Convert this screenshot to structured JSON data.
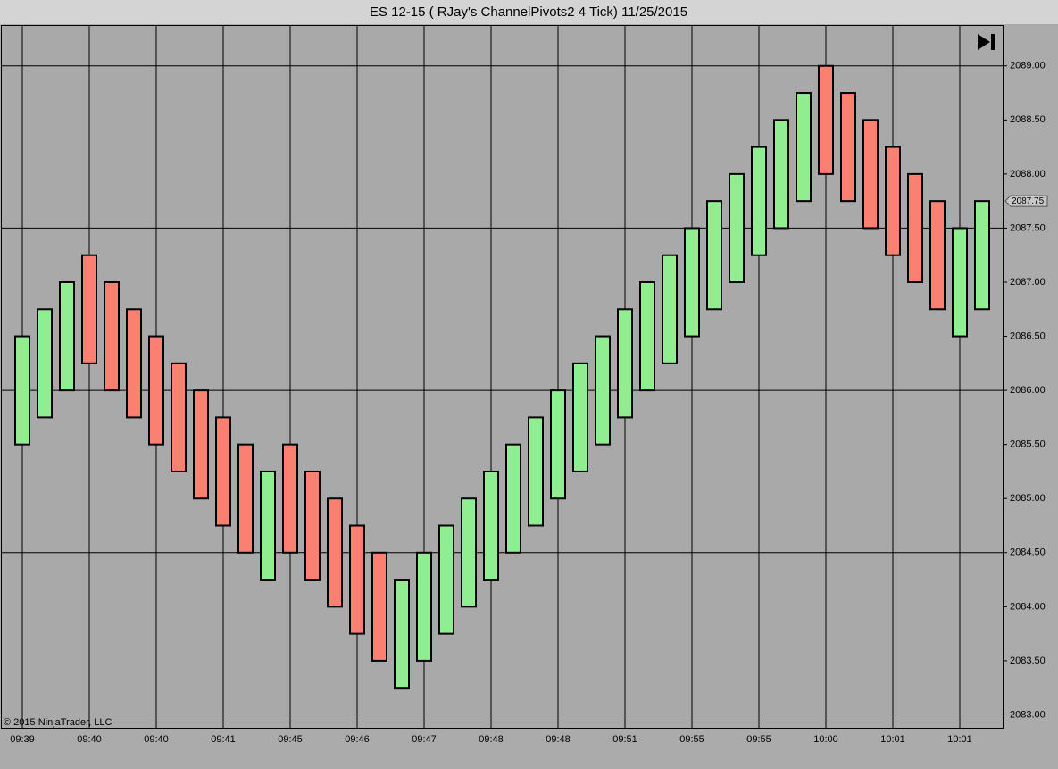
{
  "chart_data": {
    "type": "candlestick",
    "title": "ES 12-15 ( RJay's ChannelPivots2  4 Tick)  11/25/2015",
    "copyright": "© 2015 NinjaTrader, LLC",
    "categories": [
      "09:39",
      null,
      null,
      "09:40",
      null,
      null,
      "09:40",
      null,
      null,
      "09:41",
      null,
      null,
      "09:45",
      null,
      null,
      "09:46",
      null,
      null,
      "09:47",
      null,
      null,
      "09:48",
      null,
      null,
      "09:48",
      null,
      null,
      "09:51",
      null,
      null,
      "09:55",
      null,
      null,
      "09:55",
      null,
      null,
      "10:00",
      null,
      null,
      "10:01",
      null,
      null,
      "10:01",
      null
    ],
    "open": [
      2085.5,
      2085.75,
      2086,
      2087.25,
      2087,
      2086.75,
      2086.5,
      2086.25,
      2086,
      2085.75,
      2085.5,
      2084.25,
      2085.5,
      2085.25,
      2085,
      2084.75,
      2084.5,
      2083.25,
      2083.5,
      2083.75,
      2084,
      2084.25,
      2084.5,
      2084.75,
      2085,
      2085.25,
      2085.5,
      2085.75,
      2086,
      2086.25,
      2086.5,
      2086.75,
      2087,
      2087.25,
      2087.5,
      2087.75,
      2089,
      2088.75,
      2088.5,
      2088.25,
      2088,
      2087.75,
      2086.5,
      2086.75
    ],
    "close": [
      2086.5,
      2086.75,
      2087,
      2086.25,
      2086,
      2085.75,
      2085.5,
      2085.25,
      2085,
      2084.75,
      2084.5,
      2085.25,
      2084.5,
      2084.25,
      2084,
      2083.75,
      2083.5,
      2084.25,
      2084.5,
      2084.75,
      2085,
      2085.25,
      2085.5,
      2085.75,
      2086,
      2086.25,
      2086.5,
      2086.75,
      2087,
      2087.25,
      2087.5,
      2087.75,
      2088,
      2088.25,
      2088.5,
      2088.75,
      2088,
      2087.75,
      2087.5,
      2087.25,
      2087,
      2086.75,
      2087.5,
      2087.75
    ],
    "up_color": "#90ee90",
    "down_color": "#fa8072",
    "last_price": 2087.75,
    "ylim": [
      2082.88,
      2089.32
    ],
    "yticks": [
      {
        "value": 2083,
        "label": "2083.00"
      },
      {
        "value": 2083.5,
        "label": "2083.50"
      },
      {
        "value": 2084,
        "label": "2084.00"
      },
      {
        "value": 2084.5,
        "label": "2084.50"
      },
      {
        "value": 2085,
        "label": "2085.00"
      },
      {
        "value": 2085.5,
        "label": "2085.50"
      },
      {
        "value": 2086,
        "label": "2086.00"
      },
      {
        "value": 2086.5,
        "label": "2086.50"
      },
      {
        "value": 2087,
        "label": "2087.00"
      },
      {
        "value": 2087.5,
        "label": "2087.50"
      },
      {
        "value": 2088,
        "label": "2088.00"
      },
      {
        "value": 2088.5,
        "label": "2088.50"
      },
      {
        "value": 2089,
        "label": "2089.00"
      }
    ],
    "ygrid": [
      2083,
      2084.5,
      2086,
      2087.5,
      2089
    ]
  }
}
